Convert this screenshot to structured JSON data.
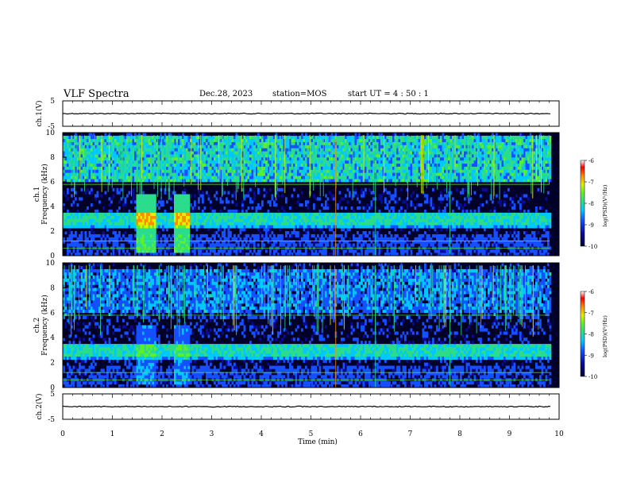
{
  "header": {
    "title": "VLF Spectra",
    "date": "Dec.28, 2023",
    "station": "station=MOS",
    "start": "start UT =  4 : 50 : 1"
  },
  "chart_data": [
    {
      "type": "line",
      "name": "ch1-waveform",
      "ylabel": "ch.1(V)",
      "ylim": [
        -5,
        5
      ],
      "yticks": [
        "5",
        "-5"
      ],
      "xlim": [
        0,
        10
      ]
    },
    {
      "type": "heatmap",
      "name": "ch1-spectrogram",
      "ylabel": "ch.1\nFrequency (kHz)",
      "ylim": [
        0,
        10
      ],
      "yticks": [
        "0",
        "2",
        "4",
        "6",
        "8",
        "10"
      ],
      "xlim": [
        0,
        10
      ]
    },
    {
      "type": "heatmap",
      "name": "ch2-spectrogram",
      "ylabel": "ch.2\nFrequency (kHz)",
      "ylim": [
        0,
        10
      ],
      "yticks": [
        "0",
        "2",
        "4",
        "6",
        "8",
        "10"
      ],
      "xlim": [
        0,
        10
      ]
    },
    {
      "type": "line",
      "name": "ch2-waveform",
      "ylabel": "ch.2(V)",
      "ylim": [
        -5,
        5
      ],
      "yticks": [
        "5",
        "-5"
      ],
      "xlim": [
        0,
        10
      ]
    }
  ],
  "xaxis": {
    "label": "Time (min)",
    "ticks": [
      "0",
      "1",
      "2",
      "3",
      "4",
      "5",
      "6",
      "7",
      "8",
      "9",
      "10"
    ]
  },
  "colorbar": {
    "label": "log(PSD)(V²/Hz)",
    "ticks": [
      "-6",
      "-7",
      "-8",
      "-9",
      "-10"
    ],
    "colors": [
      "#00003c",
      "#0a0a9a",
      "#1450ff",
      "#00c8ff",
      "#2adc8c",
      "#5cf02c",
      "#e0f000",
      "#ff8c00",
      "#ff0000",
      "#ffffff"
    ]
  }
}
